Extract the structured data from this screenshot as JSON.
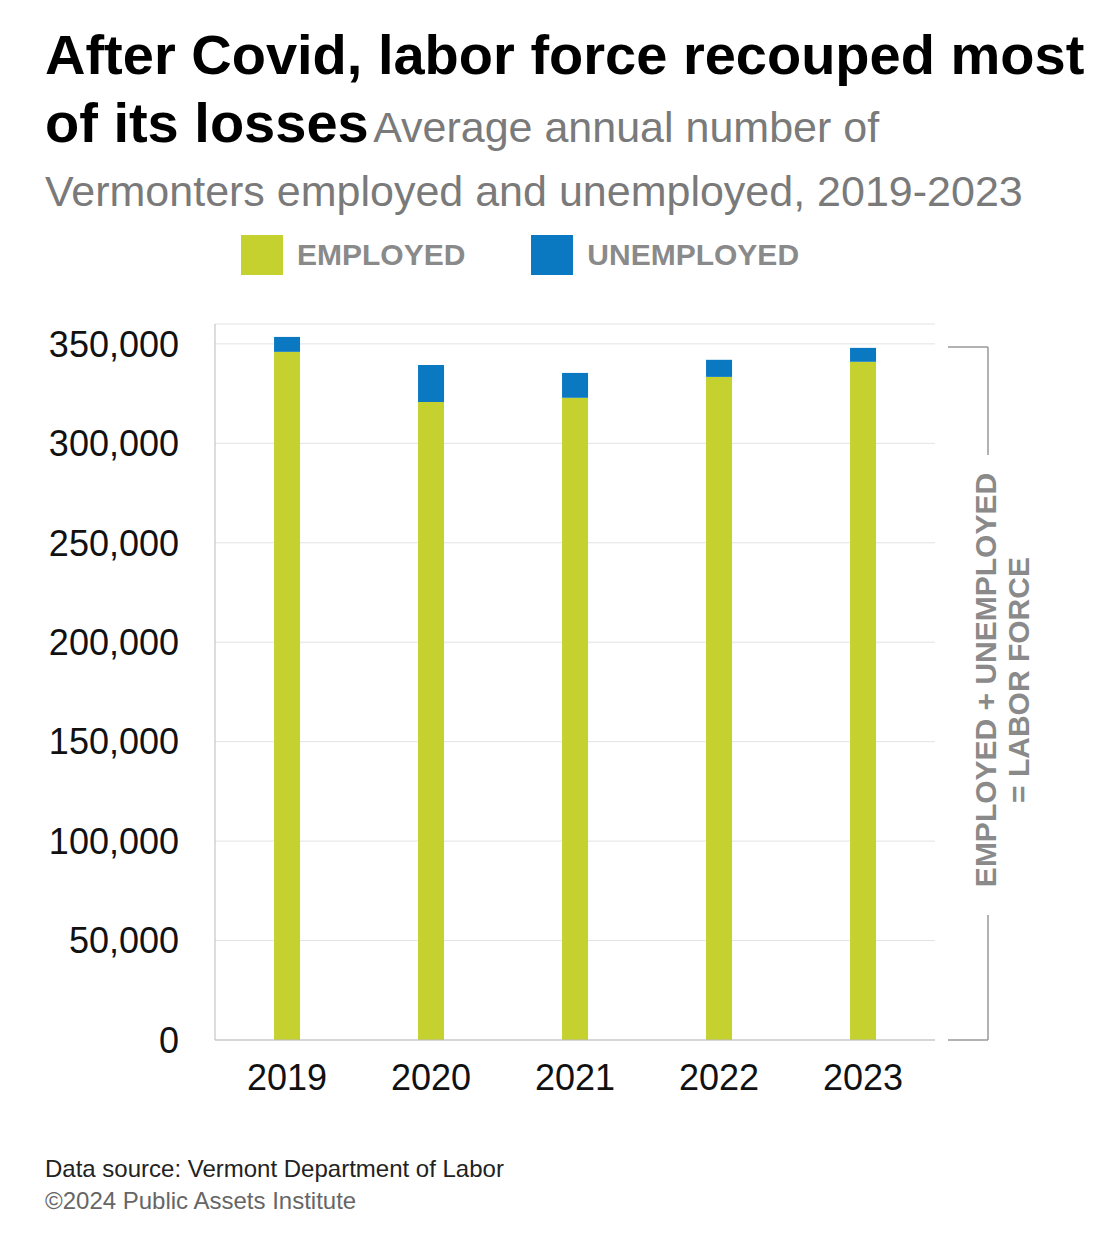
{
  "chart_data": {
    "type": "bar",
    "title": "After Covid, labor force recouped most of its losses",
    "subtitle": "Average annual number of Vermonters employed and unemployed, 2019-2023",
    "categories": [
      "2019",
      "2020",
      "2021",
      "2022",
      "2023"
    ],
    "series": [
      {
        "name": "EMPLOYED",
        "color": "#c5d12f",
        "values": [
          346000,
          320800,
          322900,
          333400,
          341000
        ]
      },
      {
        "name": "UNEMPLOYED",
        "color": "#0a79c2",
        "values": [
          7500,
          18600,
          12500,
          8600,
          7000
        ]
      }
    ],
    "stacked": true,
    "ylim": [
      0,
      360000
    ],
    "yticks": [
      0,
      {
        "value": 50000,
        "label": "50,000"
      },
      {
        "value": 100000,
        "label": "100,000"
      },
      {
        "value": 150000,
        "label": "150,000"
      },
      {
        "value": 200000,
        "label": "200,000"
      },
      {
        "value": 250000,
        "label": "250,000"
      },
      {
        "value": 300000,
        "label": "300,000"
      },
      {
        "value": 350000,
        "label": "350,000"
      }
    ],
    "grid": true,
    "legend": "top",
    "annotation": [
      "EMPLOYED + UNEMPLOYED",
      "= LABOR FORCE"
    ],
    "source": "Data source: Vermont Department of Labor",
    "copyright": "©2024 Public Assets Institute"
  }
}
